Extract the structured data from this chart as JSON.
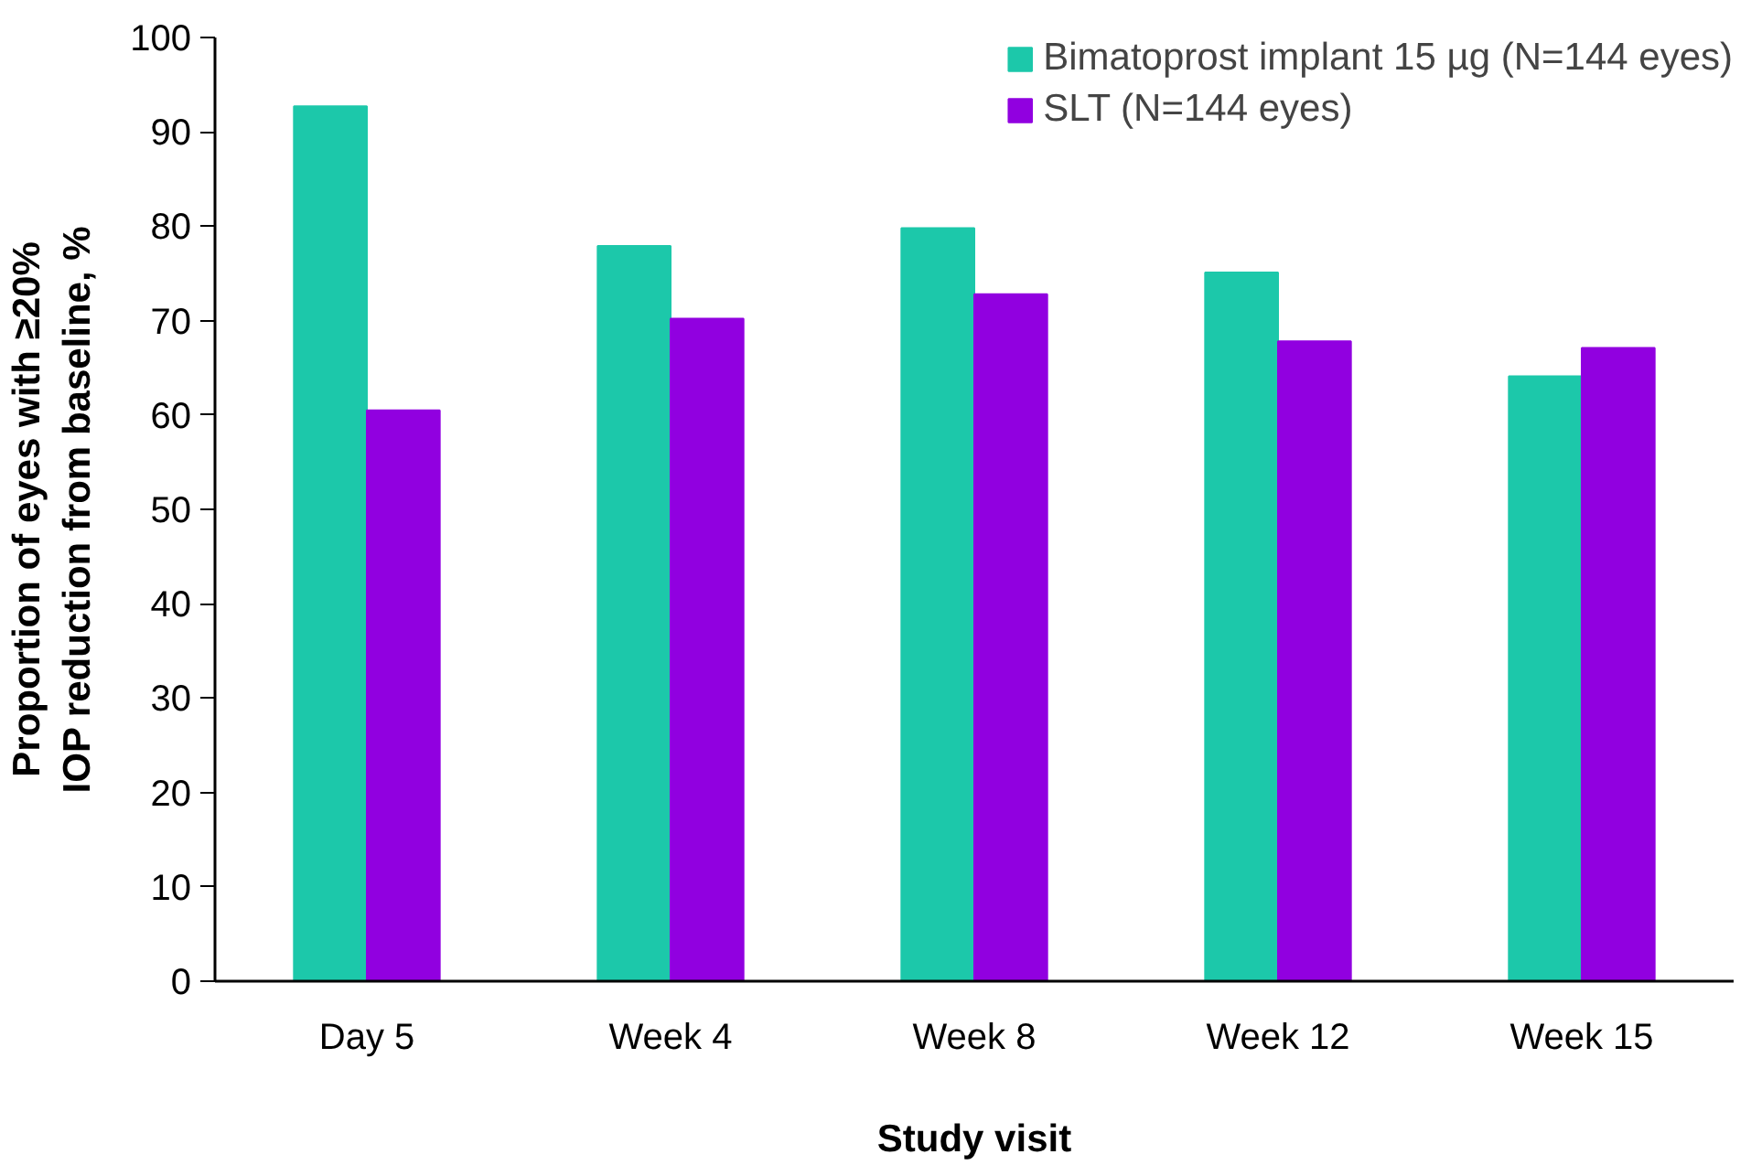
{
  "chart_data": {
    "type": "bar",
    "xlabel": "Study visit",
    "ylabel": "Proportion of eyes with ≥20% IOP reduction from baseline, %",
    "categories": [
      "Day 5",
      "Week 4",
      "Week 8",
      "Week 12",
      "Week 15"
    ],
    "series": [
      {
        "name": "Bimatoprost implant 15 µg (N=144 eyes)",
        "color": "#1cc8aa",
        "values": [
          92.7,
          77.9,
          79.8,
          75.1,
          64.1
        ]
      },
      {
        "name": "SLT (N=144 eyes)",
        "color": "#9100e0",
        "values": [
          60.5,
          70.2,
          72.8,
          67.8,
          67.1
        ]
      }
    ],
    "ylim": [
      0,
      100
    ],
    "yticks": [
      0,
      10,
      20,
      30,
      40,
      50,
      60,
      70,
      80,
      90,
      100
    ],
    "grid": false,
    "legend": "top right"
  }
}
